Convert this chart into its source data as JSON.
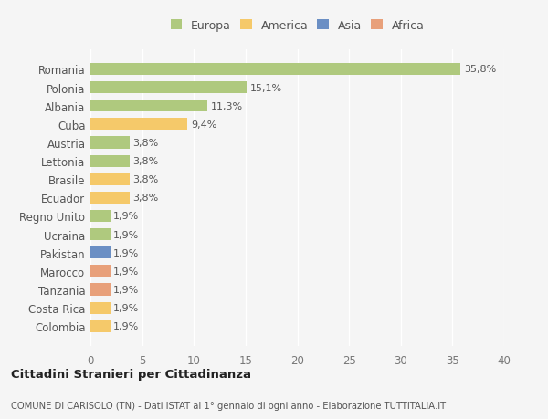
{
  "countries": [
    "Romania",
    "Polonia",
    "Albania",
    "Cuba",
    "Austria",
    "Lettonia",
    "Brasile",
    "Ecuador",
    "Regno Unito",
    "Ucraina",
    "Pakistan",
    "Marocco",
    "Tanzania",
    "Costa Rica",
    "Colombia"
  ],
  "values": [
    35.8,
    15.1,
    11.3,
    9.4,
    3.8,
    3.8,
    3.8,
    3.8,
    1.9,
    1.9,
    1.9,
    1.9,
    1.9,
    1.9,
    1.9
  ],
  "labels": [
    "35,8%",
    "15,1%",
    "11,3%",
    "9,4%",
    "3,8%",
    "3,8%",
    "3,8%",
    "3,8%",
    "1,9%",
    "1,9%",
    "1,9%",
    "1,9%",
    "1,9%",
    "1,9%",
    "1,9%"
  ],
  "colors": [
    "#afc97e",
    "#afc97e",
    "#afc97e",
    "#f5c96a",
    "#afc97e",
    "#afc97e",
    "#f5c96a",
    "#f5c96a",
    "#afc97e",
    "#afc97e",
    "#6b8fc4",
    "#e8a07a",
    "#e8a07a",
    "#f5c96a",
    "#f5c96a"
  ],
  "legend_labels": [
    "Europa",
    "America",
    "Asia",
    "Africa"
  ],
  "legend_colors": [
    "#afc97e",
    "#f5c96a",
    "#6b8fc4",
    "#e8a07a"
  ],
  "title": "Cittadini Stranieri per Cittadinanza",
  "subtitle": "COMUNE DI CARISOLO (TN) - Dati ISTAT al 1° gennaio di ogni anno - Elaborazione TUTTITALIA.IT",
  "xlim": [
    0,
    40
  ],
  "xticks": [
    0,
    5,
    10,
    15,
    20,
    25,
    30,
    35,
    40
  ],
  "background_color": "#f5f5f5",
  "grid_color": "#ffffff",
  "bar_height": 0.65,
  "label_fontsize": 8,
  "tick_fontsize": 8.5
}
